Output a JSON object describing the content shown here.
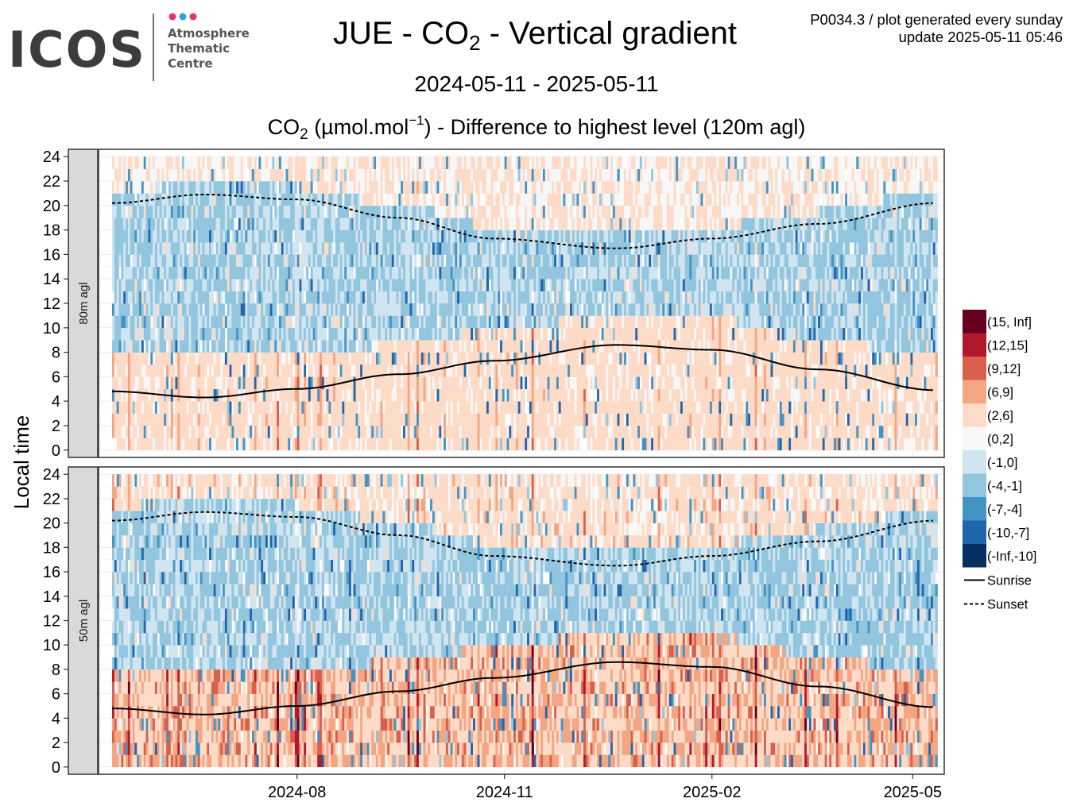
{
  "logo": {
    "text": "ICOS",
    "subtitle_lines": [
      "Atmosphere",
      "Thematic",
      "Centre"
    ],
    "dot_colors": [
      "#e8336e",
      "#2aa6e3",
      "#e8336e"
    ]
  },
  "title": {
    "prefix": "JUE - CO",
    "subscript": "2",
    "suffix": " - Vertical gradient"
  },
  "meta": {
    "line1": "P0034.3 / plot generated every sunday",
    "line2": "update  2025-05-11 05:46"
  },
  "date_range": "2024-05-11 - 2025-05-11",
  "subtitle": {
    "prefix": "CO",
    "subscript": "2",
    "middle": " (µmol.mol",
    "superscript": "−1",
    "suffix": ") - Difference to highest level (120m agl)"
  },
  "chart_data": {
    "type": "heatmap",
    "x_range": [
      "2024-05-11",
      "2025-05-11"
    ],
    "x_ticks": [
      "2024-08",
      "2024-11",
      "2025-02",
      "2025-05"
    ],
    "y_label": "Local time",
    "y_range": [
      0,
      24
    ],
    "y_ticks": [
      "0",
      "2",
      "4",
      "6",
      "8",
      "10",
      "12",
      "14",
      "16",
      "18",
      "20",
      "22",
      "24"
    ],
    "panels": [
      {
        "label": "80m agl",
        "intensity": "moderate"
      },
      {
        "label": "50m agl",
        "intensity": "strong"
      }
    ],
    "color_bins": [
      {
        "label": "(15, Inf]",
        "color": "#67001f"
      },
      {
        "label": "(12,15]",
        "color": "#b2182b"
      },
      {
        "label": "(9,12]",
        "color": "#d6604d"
      },
      {
        "label": "(6,9]",
        "color": "#f4a582"
      },
      {
        "label": "(2,6]",
        "color": "#fddbc7"
      },
      {
        "label": "(0,2]",
        "color": "#f7f7f7"
      },
      {
        "label": "(-1,0]",
        "color": "#d1e5f0"
      },
      {
        "label": "(-4,-1]",
        "color": "#92c5de"
      },
      {
        "label": "(-7,-4]",
        "color": "#4393c3"
      },
      {
        "label": "(-10,-7]",
        "color": "#2166ac"
      },
      {
        "label": "(-Inf,-10]",
        "color": "#053061"
      }
    ],
    "sunrise": {
      "label": "Sunrise",
      "points": [
        [
          "2024-05-11",
          4.8
        ],
        [
          "2024-06-21",
          4.3
        ],
        [
          "2024-08-01",
          5.0
        ],
        [
          "2024-09-15",
          6.2
        ],
        [
          "2024-10-27",
          7.3
        ],
        [
          "2024-12-21",
          8.6
        ],
        [
          "2025-02-01",
          8.2
        ],
        [
          "2025-03-20",
          6.6
        ],
        [
          "2025-05-11",
          4.9
        ]
      ]
    },
    "sunset": {
      "label": "Sunset",
      "points": [
        [
          "2024-05-11",
          20.2
        ],
        [
          "2024-06-21",
          20.9
        ],
        [
          "2024-08-01",
          20.5
        ],
        [
          "2024-09-15",
          19.0
        ],
        [
          "2024-10-27",
          17.3
        ],
        [
          "2024-12-21",
          16.5
        ],
        [
          "2025-02-01",
          17.3
        ],
        [
          "2025-03-20",
          18.5
        ],
        [
          "2025-05-11",
          20.2
        ]
      ]
    },
    "legend_placement": "right"
  }
}
